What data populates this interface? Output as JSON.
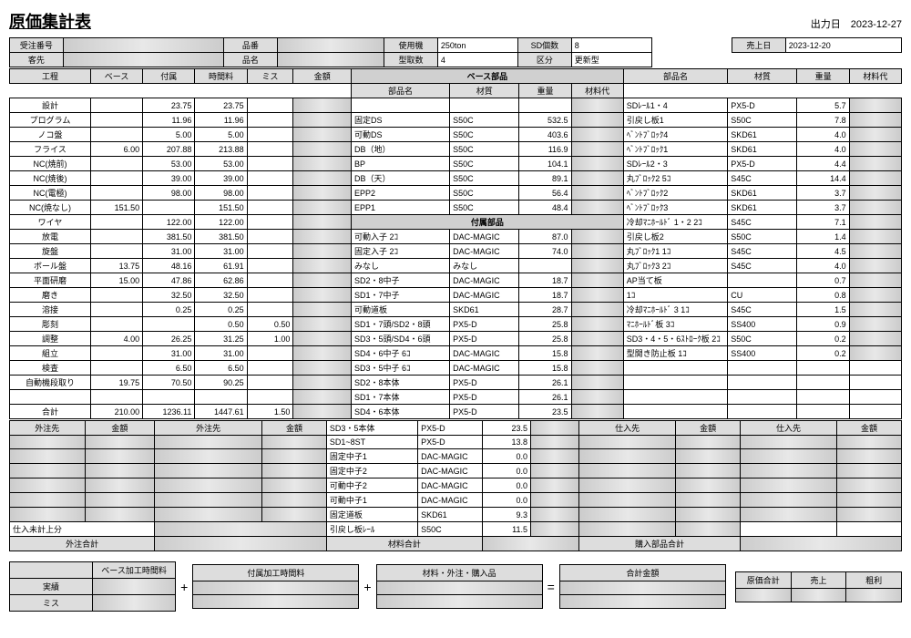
{
  "title": "原価集計表",
  "output_date_label": "出力日",
  "output_date": "2023-12-27",
  "header": {
    "labels": {
      "order_no": "受注番号",
      "part_no": "品番",
      "machine": "使用機",
      "sd_count": "SD個数",
      "sales_date": "売上日",
      "customer": "客先",
      "part_name": "品名",
      "mold_count": "型取数",
      "category": "区分"
    },
    "machine": "250ton",
    "sd_count": "8",
    "sales_date": "2023-12-20",
    "mold_count": "4",
    "category": "更新型"
  },
  "process_headers": [
    "工程",
    "ベース",
    "付属",
    "時間料",
    "ミス",
    "金額"
  ],
  "base_parts_title": "ベース部品",
  "base_parts_headers": [
    "部品名",
    "材質",
    "重量",
    "材料代"
  ],
  "attach_parts_title": "付属部品",
  "right_headers": [
    "部品名",
    "材質",
    "重量",
    "材料代"
  ],
  "processes": [
    {
      "name": "設計",
      "base": "",
      "attach": "23.75",
      "time": "23.75",
      "miss": "",
      "amt": ""
    },
    {
      "name": "プログラム",
      "base": "",
      "attach": "11.96",
      "time": "11.96",
      "miss": "",
      "amt": ""
    },
    {
      "name": "ノコ盤",
      "base": "",
      "attach": "5.00",
      "time": "5.00",
      "miss": "",
      "amt": ""
    },
    {
      "name": "フライス",
      "base": "6.00",
      "attach": "207.88",
      "time": "213.88",
      "miss": "",
      "amt": ""
    },
    {
      "name": "NC(焼前)",
      "base": "",
      "attach": "53.00",
      "time": "53.00",
      "miss": "",
      "amt": ""
    },
    {
      "name": "NC(焼後)",
      "base": "",
      "attach": "39.00",
      "time": "39.00",
      "miss": "",
      "amt": ""
    },
    {
      "name": "NC(電極)",
      "base": "",
      "attach": "98.00",
      "time": "98.00",
      "miss": "",
      "amt": ""
    },
    {
      "name": "NC(焼なし)",
      "base": "151.50",
      "attach": "",
      "time": "151.50",
      "miss": "",
      "amt": ""
    },
    {
      "name": "ワイヤ",
      "base": "",
      "attach": "122.00",
      "time": "122.00",
      "miss": "",
      "amt": ""
    },
    {
      "name": "放電",
      "base": "",
      "attach": "381.50",
      "time": "381.50",
      "miss": "",
      "amt": ""
    },
    {
      "name": "旋盤",
      "base": "",
      "attach": "31.00",
      "time": "31.00",
      "miss": "",
      "amt": ""
    },
    {
      "name": "ボール盤",
      "base": "13.75",
      "attach": "48.16",
      "time": "61.91",
      "miss": "",
      "amt": ""
    },
    {
      "name": "平面研磨",
      "base": "15.00",
      "attach": "47.86",
      "time": "62.86",
      "miss": "",
      "amt": ""
    },
    {
      "name": "磨き",
      "base": "",
      "attach": "32.50",
      "time": "32.50",
      "miss": "",
      "amt": ""
    },
    {
      "name": "溶接",
      "base": "",
      "attach": "0.25",
      "time": "0.25",
      "miss": "",
      "amt": ""
    },
    {
      "name": "彫刻",
      "base": "",
      "attach": "",
      "time": "0.50",
      "miss": "0.50",
      "amt": ""
    },
    {
      "name": "調整",
      "base": "4.00",
      "attach": "26.25",
      "time": "31.25",
      "miss": "1.00",
      "amt": ""
    },
    {
      "name": "組立",
      "base": "",
      "attach": "31.00",
      "time": "31.00",
      "miss": "",
      "amt": ""
    },
    {
      "name": "検査",
      "base": "",
      "attach": "6.50",
      "time": "6.50",
      "miss": "",
      "amt": ""
    },
    {
      "name": "自動機段取り",
      "base": "19.75",
      "attach": "70.50",
      "time": "90.25",
      "miss": "",
      "amt": ""
    },
    {
      "name": "",
      "base": "",
      "attach": "",
      "time": "",
      "miss": "",
      "amt": ""
    }
  ],
  "process_total": {
    "name": "合計",
    "base": "210.00",
    "attach": "1236.11",
    "time": "1447.61",
    "miss": "1.50"
  },
  "base_parts": [
    {
      "name": "",
      "mat": "",
      "wt": "",
      "cost": ""
    },
    {
      "name": "固定DS",
      "mat": "S50C",
      "wt": "532.5",
      "cost": ""
    },
    {
      "name": "可動DS",
      "mat": "S50C",
      "wt": "403.6",
      "cost": ""
    },
    {
      "name": "DB（地）",
      "mat": "S50C",
      "wt": "116.9",
      "cost": ""
    },
    {
      "name": "BP",
      "mat": "S50C",
      "wt": "104.1",
      "cost": ""
    },
    {
      "name": "DB（天）",
      "mat": "S50C",
      "wt": "89.1",
      "cost": ""
    },
    {
      "name": "EPP2",
      "mat": "S50C",
      "wt": "56.4",
      "cost": ""
    },
    {
      "name": "EPP1",
      "mat": "S50C",
      "wt": "48.4",
      "cost": ""
    }
  ],
  "attach_parts": [
    {
      "name": "可動入子 2ｺ",
      "mat": "DAC-MAGIC",
      "wt": "87.0",
      "cost": ""
    },
    {
      "name": "固定入子 2ｺ",
      "mat": "DAC-MAGIC",
      "wt": "74.0",
      "cost": ""
    },
    {
      "name": "みなし",
      "mat": "みなし",
      "wt": "",
      "cost": ""
    },
    {
      "name": "SD2・8中子",
      "mat": "DAC-MAGIC",
      "wt": "18.7",
      "cost": ""
    },
    {
      "name": "SD1・7中子",
      "mat": "DAC-MAGIC",
      "wt": "18.7",
      "cost": ""
    },
    {
      "name": "可動道板",
      "mat": "SKD61",
      "wt": "28.7",
      "cost": ""
    },
    {
      "name": "SD1・7頭/SD2・8頭",
      "mat": "PX5-D",
      "wt": "25.8",
      "cost": ""
    },
    {
      "name": "SD3・5頭/SD4・6頭",
      "mat": "PX5-D",
      "wt": "25.8",
      "cost": ""
    },
    {
      "name": "SD4・6中子 6ｺ",
      "mat": "DAC-MAGIC",
      "wt": "15.8",
      "cost": ""
    },
    {
      "name": "SD3・5中子 6ｺ",
      "mat": "DAC-MAGIC",
      "wt": "15.8",
      "cost": ""
    },
    {
      "name": "SD2・8本体",
      "mat": "PX5-D",
      "wt": "26.1",
      "cost": ""
    },
    {
      "name": "SD1・7本体",
      "mat": "PX5-D",
      "wt": "26.1",
      "cost": ""
    },
    {
      "name": "SD4・6本体",
      "mat": "PX5-D",
      "wt": "23.5",
      "cost": ""
    },
    {
      "name": "SD3・5本体",
      "mat": "PX5-D",
      "wt": "23.5",
      "cost": ""
    },
    {
      "name": "SD1~8ST",
      "mat": "PX5-D",
      "wt": "13.8",
      "cost": ""
    },
    {
      "name": "固定中子1",
      "mat": "DAC-MAGIC",
      "wt": "0.0",
      "cost": ""
    },
    {
      "name": "固定中子2",
      "mat": "DAC-MAGIC",
      "wt": "0.0",
      "cost": ""
    },
    {
      "name": "可動中子2",
      "mat": "DAC-MAGIC",
      "wt": "0.0",
      "cost": ""
    },
    {
      "name": "可動中子1",
      "mat": "DAC-MAGIC",
      "wt": "0.0",
      "cost": ""
    },
    {
      "name": "固定道板",
      "mat": "SKD61",
      "wt": "9.3",
      "cost": ""
    },
    {
      "name": "引戻し板ﾚｰﾙ",
      "mat": "S50C",
      "wt": "11.5",
      "cost": ""
    }
  ],
  "right_parts": [
    {
      "name": "SDﾚｰﾙ1・4",
      "mat": "PX5-D",
      "wt": "5.7",
      "cost": ""
    },
    {
      "name": "引戻し板1",
      "mat": "S50C",
      "wt": "7.8",
      "cost": ""
    },
    {
      "name": "ﾍﾞﾝﾄﾌﾞﾛｯｸ4",
      "mat": "SKD61",
      "wt": "4.0",
      "cost": ""
    },
    {
      "name": "ﾍﾞﾝﾄﾌﾞﾛｯｸ1",
      "mat": "SKD61",
      "wt": "4.0",
      "cost": ""
    },
    {
      "name": "SDﾚｰﾙ2・3",
      "mat": "PX5-D",
      "wt": "4.4",
      "cost": ""
    },
    {
      "name": "丸ﾌﾞﾛｯｸ2 5ｺ",
      "mat": "S45C",
      "wt": "14.4",
      "cost": ""
    },
    {
      "name": "ﾍﾞﾝﾄﾌﾞﾛｯｸ2",
      "mat": "SKD61",
      "wt": "3.7",
      "cost": ""
    },
    {
      "name": "ﾍﾞﾝﾄﾌﾞﾛｯｸ3",
      "mat": "SKD61",
      "wt": "3.7",
      "cost": ""
    },
    {
      "name": "冷却ﾏﾆﾎｰﾙﾄﾞ 1・2 2ｺ",
      "mat": "S45C",
      "wt": "7.1",
      "cost": ""
    },
    {
      "name": "引戻し板2",
      "mat": "S50C",
      "wt": "1.4",
      "cost": ""
    },
    {
      "name": "丸ﾌﾞﾛｯｸ1 1ｺ",
      "mat": "S45C",
      "wt": "4.5",
      "cost": ""
    },
    {
      "name": "丸ﾌﾞﾛｯｸ3 2ｺ",
      "mat": "S45C",
      "wt": "4.0",
      "cost": ""
    },
    {
      "name": "AP当て板",
      "mat": "",
      "wt": "0.7",
      "cost": ""
    },
    {
      "name": "1ｺ",
      "mat": "CU",
      "wt": "0.8",
      "cost": ""
    },
    {
      "name": "冷却ﾏﾆﾎｰﾙﾄﾞ 3 1ｺ",
      "mat": "S45C",
      "wt": "1.5",
      "cost": ""
    },
    {
      "name": "ﾏﾆﾎｰﾙﾄﾞ板 3ｺ",
      "mat": "SS400",
      "wt": "0.9",
      "cost": ""
    },
    {
      "name": "SD3・4・5・6ｽﾄﾛｰｸ板 2ｺ",
      "mat": "S50C",
      "wt": "0.2",
      "cost": ""
    },
    {
      "name": "型開き防止板 1ｺ",
      "mat": "SS400",
      "wt": "0.2",
      "cost": ""
    }
  ],
  "sub_headers": {
    "sub": "外注先",
    "amt": "金額",
    "sup": "仕入先"
  },
  "sub_pending": "仕入未計上分",
  "totals": {
    "sub": "外注合計",
    "mat": "材料合計",
    "buy": "購入部品合計"
  },
  "calc": {
    "base_time": "ベース加工時間料",
    "attach_time": "付属加工時間料",
    "mat_sub_buy": "材料・外注・購入品",
    "total_amt": "合計金額",
    "actual": "実績",
    "miss": "ミス",
    "cost_total": "原価合計",
    "sales": "売上",
    "profit": "粗利"
  },
  "colors": {
    "header_bg": "#dddddd",
    "border": "#000000"
  }
}
